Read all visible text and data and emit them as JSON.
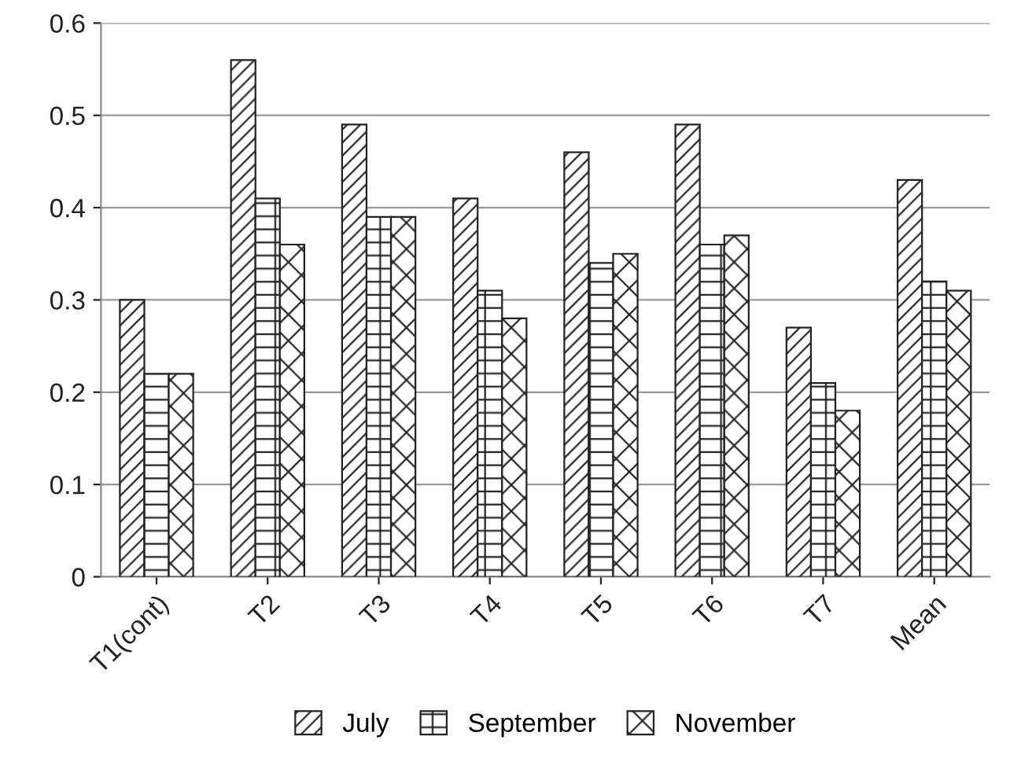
{
  "chart_data": {
    "type": "bar",
    "categories": [
      "T1(cont)",
      "T2",
      "T3",
      "T4",
      "T5",
      "T6",
      "T7",
      "Mean"
    ],
    "series": [
      {
        "name": "July",
        "color": "#222222",
        "values": [
          0.3,
          0.56,
          0.49,
          0.41,
          0.46,
          0.49,
          0.27,
          0.43
        ]
      },
      {
        "name": "September",
        "color": "#222222",
        "values": [
          0.22,
          0.41,
          0.39,
          0.31,
          0.34,
          0.36,
          0.21,
          0.32
        ]
      },
      {
        "name": "November",
        "color": "#222222",
        "values": [
          0.22,
          0.36,
          0.39,
          0.28,
          0.35,
          0.37,
          0.18,
          0.31
        ]
      }
    ],
    "ylim": [
      0,
      0.6
    ],
    "yticks": [
      0,
      0.1,
      0.2,
      0.3,
      0.4,
      0.5,
      0.6
    ],
    "grid": "y",
    "legend": "bottom"
  }
}
